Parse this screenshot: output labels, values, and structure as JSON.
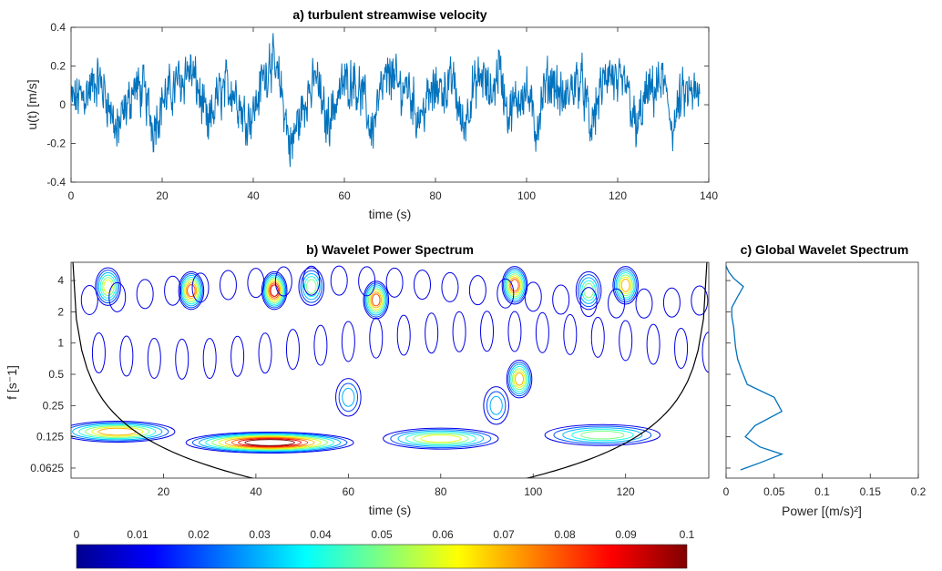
{
  "chart_data": [
    {
      "type": "line",
      "title": "a) turbulent streamwise velocity",
      "xlabel": "time (s)",
      "ylabel": "u(t) [m/s]",
      "xlim": [
        0,
        140
      ],
      "ylim": [
        -0.4,
        0.4
      ],
      "xticks": [
        "0",
        "20",
        "40",
        "60",
        "80",
        "100",
        "120",
        "140"
      ],
      "yticks": [
        "0.4",
        "0.2",
        "0",
        "-0.2",
        "-0.4"
      ],
      "series": [
        {
          "color": "#0072BD",
          "x": [
            0,
            2,
            4,
            6,
            8,
            10,
            12,
            14,
            16,
            18,
            20,
            22,
            24,
            26,
            28,
            30,
            32,
            34,
            36,
            38,
            40,
            42,
            44,
            46,
            48,
            50,
            52,
            54,
            56,
            58,
            60,
            62,
            64,
            66,
            68,
            70,
            72,
            74,
            76,
            78,
            80,
            82,
            84,
            86,
            88,
            90,
            92,
            94,
            96,
            98,
            100,
            102,
            104,
            106,
            108,
            110,
            112,
            114,
            116,
            118,
            120,
            122,
            124,
            126,
            128,
            130,
            132,
            134,
            136,
            138
          ],
          "y": [
            0.02,
            0.06,
            0.12,
            0.2,
            0.05,
            -0.22,
            -0.05,
            0.15,
            0.1,
            -0.18,
            0.02,
            0.12,
            0.18,
            0.3,
            0.12,
            -0.2,
            0.05,
            0.15,
            0.1,
            -0.1,
            -0.08,
            0.2,
            0.35,
            0.15,
            -0.35,
            -0.12,
            0.08,
            0.2,
            -0.15,
            0.02,
            0.18,
            0.2,
            0.08,
            -0.22,
            0.1,
            0.25,
            0.12,
            0.15,
            -0.1,
            0.02,
            0.12,
            0.14,
            0.16,
            -0.2,
            0.12,
            0.22,
            0.08,
            0.3,
            -0.1,
            0.05,
            0.12,
            -0.22,
            0.15,
            0.2,
            0.02,
            0.15,
            0.22,
            -0.2,
            0.08,
            0.28,
            0.12,
            0.18,
            -0.22,
            0.06,
            0.12,
            0.2,
            -0.18,
            0.05,
            0.1,
            0.02
          ]
        }
      ]
    },
    {
      "type": "heatmap",
      "title": "b) Wavelet Power Spectrum",
      "xlabel": "time (s)",
      "ylabel": "f [s⁻1]",
      "xlim": [
        0,
        138
      ],
      "scale": "log",
      "xticks": [
        "20",
        "40",
        "60",
        "80",
        "100",
        "120"
      ],
      "yticks": [
        "4",
        "2",
        "1",
        "0.5",
        "0.25",
        "0.125",
        "0.0625"
      ],
      "colorbar": {
        "range": [
          0,
          0.1
        ],
        "ticks": [
          "0",
          "0.01",
          "0.02",
          "0.03",
          "0.04",
          "0.05",
          "0.06",
          "0.07",
          "0.08",
          "0.09",
          "0.1"
        ]
      },
      "peaks": [
        {
          "t": 8,
          "f": 3.5,
          "power": 0.06
        },
        {
          "t": 26,
          "f": 3.2,
          "power": 0.08
        },
        {
          "t": 44,
          "f": 3.2,
          "power": 0.09
        },
        {
          "t": 52,
          "f": 3.5,
          "power": 0.05
        },
        {
          "t": 66,
          "f": 2.6,
          "power": 0.08
        },
        {
          "t": 96,
          "f": 3.6,
          "power": 0.08
        },
        {
          "t": 97,
          "f": 0.45,
          "power": 0.07
        },
        {
          "t": 112,
          "f": 3.2,
          "power": 0.05
        },
        {
          "t": 120,
          "f": 3.6,
          "power": 0.07
        },
        {
          "t": 43,
          "f": 0.11,
          "power": 0.1
        },
        {
          "t": 10,
          "f": 0.14,
          "power": 0.07
        },
        {
          "t": 80,
          "f": 0.12,
          "power": 0.06
        },
        {
          "t": 115,
          "f": 0.13,
          "power": 0.05
        },
        {
          "t": 60,
          "f": 0.3,
          "power": 0.03
        },
        {
          "t": 92,
          "f": 0.25,
          "power": 0.03
        }
      ]
    },
    {
      "type": "line",
      "title": "c) Global Wavelet Spectrum",
      "xlabel": "Power [(m/s)²]",
      "xlim": [
        0,
        0.2
      ],
      "xticks": [
        "0",
        "0.05",
        "0.1",
        "0.15",
        "0.2"
      ],
      "series": [
        {
          "color": "#0072BD",
          "power": [
            0.0,
            0.003,
            0.008,
            0.018,
            0.012,
            0.006,
            0.006,
            0.008,
            0.009,
            0.01,
            0.012,
            0.016,
            0.022,
            0.05,
            0.058,
            0.03,
            0.02,
            0.035,
            0.058,
            0.035,
            0.015
          ],
          "f": [
            5.5,
            4.8,
            4.2,
            3.5,
            2.8,
            2.2,
            1.8,
            1.4,
            1.1,
            0.9,
            0.7,
            0.55,
            0.4,
            0.3,
            0.22,
            0.16,
            0.125,
            0.1,
            0.085,
            0.07,
            0.06
          ]
        }
      ]
    }
  ]
}
